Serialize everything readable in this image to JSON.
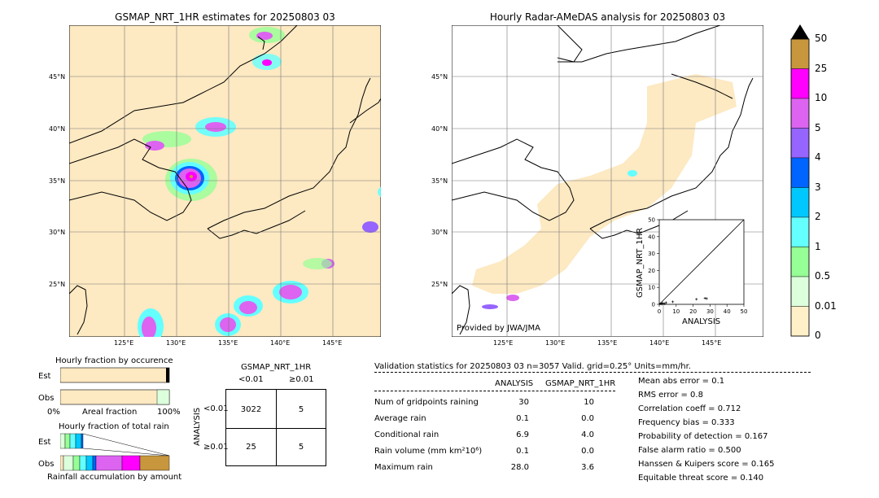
{
  "left_map": {
    "title": "GSMAP_NRT_1HR estimates for 20250803 03",
    "lat_labels": [
      "45°N",
      "40°N",
      "35°N",
      "30°N",
      "25°N"
    ],
    "lon_labels": [
      "125°E",
      "130°E",
      "135°E",
      "140°E",
      "145°E"
    ]
  },
  "right_map": {
    "title": "Hourly Radar-AMeDAS analysis for 20250803 03",
    "lat_labels": [
      "45°N",
      "40°N",
      "35°N",
      "30°N",
      "25°N"
    ],
    "lon_labels": [
      "125°E",
      "130°E",
      "135°E",
      "140°E",
      "145°E"
    ],
    "credit": "Provided by JWA/JMA"
  },
  "colorbar": {
    "labels": [
      "50",
      "25",
      "10",
      "5",
      "4",
      "3",
      "2",
      "1",
      "0.5",
      "0.01",
      "0"
    ],
    "colors": [
      "#c8963c",
      "#ff00ff",
      "#dc64f0",
      "#9664ff",
      "#0064ff",
      "#00c8ff",
      "#64ffff",
      "#96ff96",
      "#dcffdc",
      "#fff0c8"
    ]
  },
  "chart_data": [
    {
      "type": "scatter",
      "title": "",
      "xlabel": "ANALYSIS",
      "ylabel": "GSMAP_NRT_1HR",
      "xlim": [
        0,
        50
      ],
      "ylim": [
        0,
        50
      ],
      "xticks": [
        "0",
        "10",
        "20",
        "30",
        "40",
        "50"
      ],
      "yticks": [
        "0",
        "10",
        "20",
        "30",
        "40",
        "50"
      ],
      "points": [
        [
          0.5,
          0.3
        ],
        [
          1,
          0.5
        ],
        [
          1.5,
          0.2
        ],
        [
          2,
          0.8
        ],
        [
          3,
          0.4
        ],
        [
          4,
          1.0
        ],
        [
          8,
          1.5
        ],
        [
          22,
          3.0
        ],
        [
          27,
          3.6
        ],
        [
          28,
          3.4
        ]
      ]
    },
    {
      "type": "bar",
      "title": "Hourly fraction by occurence",
      "categories": [
        "Est",
        "Obs"
      ],
      "axis_left": "0%",
      "axis_mid": "Areal fraction",
      "axis_right": "100%",
      "series": [
        {
          "values": [
            0.97,
            0.88
          ]
        }
      ]
    },
    {
      "type": "bar",
      "title": "Hourly fraction of total rain",
      "categories": [
        "Est",
        "Obs"
      ],
      "xlabel": "Rainfall accumulation by amount"
    }
  ],
  "contingency": {
    "title": "GSMAP_NRT_1HR",
    "col_labels": [
      "<0.01",
      "≥0.01"
    ],
    "row_title": "ANALYSIS",
    "row_labels": [
      "<0.01",
      "≥0.01"
    ],
    "cells": [
      [
        "3022",
        "5"
      ],
      [
        "25",
        "5"
      ]
    ]
  },
  "validation": {
    "header": "Validation statistics for 20250803 03  n=3057 Valid. grid=0.25° Units=mm/hr.",
    "col_analysis": "ANALYSIS",
    "col_gsmap": "GSMAP_NRT_1HR",
    "rows": [
      {
        "label": "Num of gridpoints raining",
        "analysis": "30",
        "gsmap": "10"
      },
      {
        "label": "Average rain",
        "analysis": "0.1",
        "gsmap": "0.0"
      },
      {
        "label": "Conditional rain",
        "analysis": "6.9",
        "gsmap": "4.0"
      },
      {
        "label": "Rain volume (mm km²10⁶)",
        "analysis": "0.1",
        "gsmap": "0.0"
      },
      {
        "label": "Maximum rain",
        "analysis": "28.0",
        "gsmap": "3.6"
      }
    ],
    "scores": [
      "Mean abs error =    0.1",
      "RMS error =    0.8",
      "Correlation coeff =  0.712",
      "Frequency bias =  0.333",
      "Probability of detection =  0.167",
      "False alarm ratio =  0.500",
      "Hanssen & Kuipers score =  0.165",
      "Equitable threat score =  0.140"
    ]
  }
}
